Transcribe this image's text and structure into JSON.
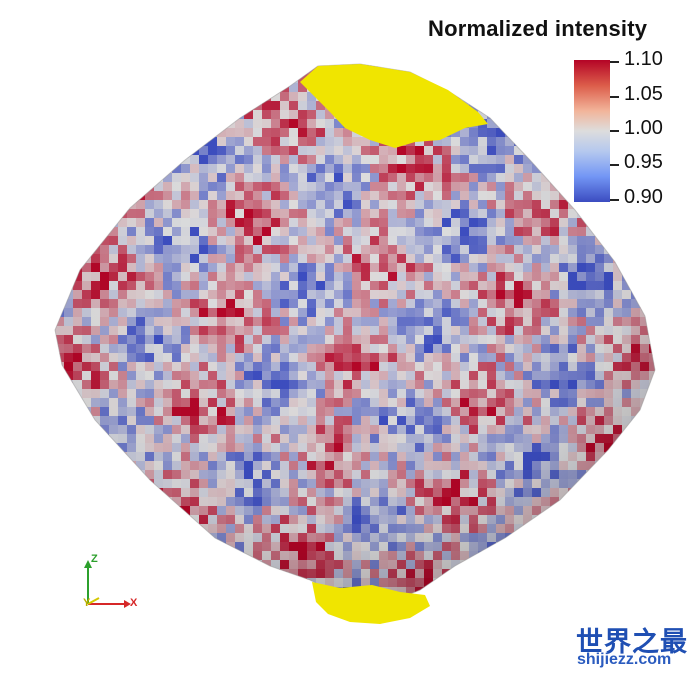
{
  "colorbar": {
    "title": "Normalized intensity",
    "ticks": [
      "1.10",
      "1.05",
      "1.00",
      "0.95",
      "0.90"
    ],
    "range": [
      0.9,
      1.1
    ],
    "colors": {
      "high": "#b40426",
      "mid": "#dddddd",
      "low": "#3b4cc0"
    }
  },
  "axes_triad": {
    "z": "Z",
    "y": "Y",
    "x": "X",
    "colors": {
      "z": "#2ca02c",
      "y": "#d4c800",
      "x": "#d62728"
    }
  },
  "watermark": {
    "brand": "世界之最",
    "url": "shijiezz.com",
    "color": "#1f4fb3"
  },
  "polar_cap_color": "#f0e500"
}
